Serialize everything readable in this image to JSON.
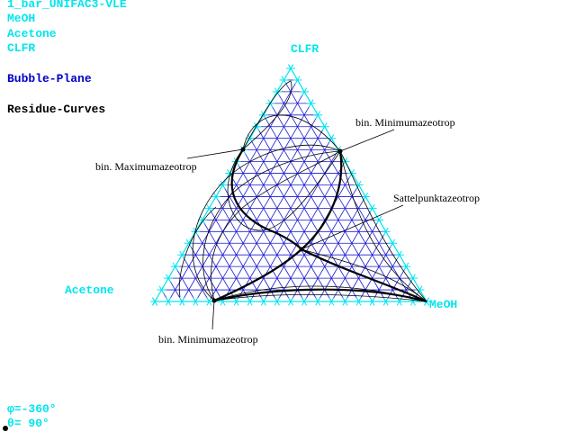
{
  "header": {
    "title": "1_bar_UNIFAC3-VLE",
    "components": [
      "MeOH",
      "Acetone",
      "CLFR"
    ],
    "plane": "Bubble-Plane",
    "curves": "Residue-Curves"
  },
  "diagram": {
    "vertices": {
      "top": "CLFR",
      "left": "Acetone",
      "right": "MeOH"
    },
    "annotations": [
      "bin. Minimumazeotrop",
      "bin. Maximumazeotrop",
      "Sattelpunktazeotrop",
      "bin. Minimumazeotrop"
    ]
  },
  "footer": {
    "angles": [
      "φ=-360°",
      "θ= 90°"
    ]
  }
}
